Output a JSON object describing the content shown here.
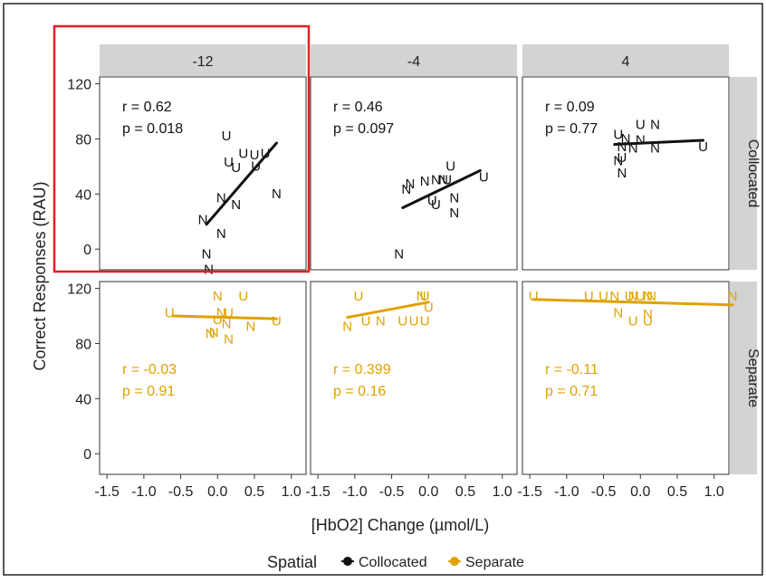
{
  "chart_data": {
    "type": "scatter",
    "facet_columns": [
      "-12",
      "-4",
      "4"
    ],
    "facet_rows": [
      "Collocated",
      "Separate"
    ],
    "xlabel": "[HbO2] Change (µmol/L)",
    "ylabel": "Correct Responses (RAU)",
    "x_ticks": [
      "-1.5",
      "-1.0",
      "-0.5",
      "0.0",
      "0.5",
      "1.0"
    ],
    "y_ticks": [
      "0",
      "40",
      "80",
      "120"
    ],
    "xlim": [
      -1.6,
      1.2
    ],
    "ylim": [
      -15,
      125
    ],
    "legend": {
      "title": "Spatial",
      "entries": [
        "Collocated",
        "Separate"
      ],
      "placement": "bottom"
    },
    "colors": {
      "Collocated": "#111111",
      "Separate": "#e0a100"
    },
    "marker_glyphs": [
      "U",
      "N"
    ],
    "highlight": {
      "facet": "-12 / Collocated",
      "color": "#e02020"
    },
    "panels": [
      {
        "col": "-12",
        "row": "Collocated",
        "group": "Collocated",
        "r": "r = 0.62",
        "p": "p = 0.018",
        "label_position": "top",
        "fit": [
          [
            -0.15,
            18
          ],
          [
            0.8,
            77
          ]
        ],
        "points": [
          {
            "m": "U",
            "x": 0.12,
            "y": 83
          },
          {
            "m": "U",
            "x": 0.35,
            "y": 70
          },
          {
            "m": "U",
            "x": 0.15,
            "y": 64
          },
          {
            "m": "U",
            "x": 0.25,
            "y": 60
          },
          {
            "m": "U",
            "x": 0.5,
            "y": 69
          },
          {
            "m": "U",
            "x": 0.65,
            "y": 70
          },
          {
            "m": "U",
            "x": 0.52,
            "y": 61
          },
          {
            "m": "N",
            "x": 0.05,
            "y": 38
          },
          {
            "m": "N",
            "x": 0.25,
            "y": 33
          },
          {
            "m": "N",
            "x": 0.8,
            "y": 41
          },
          {
            "m": "N",
            "x": -0.2,
            "y": 22
          },
          {
            "m": "N",
            "x": 0.05,
            "y": 12
          },
          {
            "m": "N",
            "x": -0.15,
            "y": -3
          },
          {
            "m": "N",
            "x": -0.12,
            "y": -14
          }
        ]
      },
      {
        "col": "-4",
        "row": "Collocated",
        "group": "Collocated",
        "r": "r = 0.46",
        "p": "p = 0.097",
        "label_position": "top",
        "fit": [
          [
            -0.35,
            30
          ],
          [
            0.7,
            57
          ]
        ],
        "points": [
          {
            "m": "N",
            "x": -0.25,
            "y": 48
          },
          {
            "m": "N",
            "x": -0.3,
            "y": 44
          },
          {
            "m": "N",
            "x": 0.1,
            "y": 51
          },
          {
            "m": "N",
            "x": 0.2,
            "y": 51
          },
          {
            "m": "U",
            "x": 0.3,
            "y": 61
          },
          {
            "m": "U",
            "x": 0.25,
            "y": 51
          },
          {
            "m": "U",
            "x": 0.75,
            "y": 53
          },
          {
            "m": "N",
            "x": -0.05,
            "y": 50
          },
          {
            "m": "U",
            "x": 0.05,
            "y": 36
          },
          {
            "m": "U",
            "x": 0.1,
            "y": 33
          },
          {
            "m": "N",
            "x": 0.35,
            "y": 38
          },
          {
            "m": "N",
            "x": 0.35,
            "y": 27
          },
          {
            "m": "N",
            "x": -0.4,
            "y": -3
          }
        ]
      },
      {
        "col": "4",
        "row": "Collocated",
        "group": "Collocated",
        "r": "r = 0.09",
        "p": "p = 0.77",
        "label_position": "top",
        "fit": [
          [
            -0.35,
            76
          ],
          [
            0.85,
            79
          ]
        ],
        "points": [
          {
            "m": "U",
            "x": -0.3,
            "y": 84
          },
          {
            "m": "U",
            "x": 0.0,
            "y": 91
          },
          {
            "m": "N",
            "x": 0.2,
            "y": 91
          },
          {
            "m": "N",
            "x": -0.2,
            "y": 81
          },
          {
            "m": "N",
            "x": 0.0,
            "y": 80
          },
          {
            "m": "N",
            "x": -0.25,
            "y": 75
          },
          {
            "m": "N",
            "x": -0.1,
            "y": 74
          },
          {
            "m": "N",
            "x": 0.2,
            "y": 74
          },
          {
            "m": "U",
            "x": 0.85,
            "y": 75
          },
          {
            "m": "U",
            "x": -0.25,
            "y": 67
          },
          {
            "m": "N",
            "x": -0.3,
            "y": 65
          },
          {
            "m": "N",
            "x": -0.25,
            "y": 56
          }
        ]
      },
      {
        "col": "-12",
        "row": "Separate",
        "group": "Separate",
        "r": "r = -0.03",
        "p": "p = 0.91",
        "label_position": "bottom",
        "fit": [
          [
            -0.6,
            100
          ],
          [
            0.8,
            98
          ]
        ],
        "points": [
          {
            "m": "U",
            "x": -0.65,
            "y": 103
          },
          {
            "m": "N",
            "x": 0.0,
            "y": 115
          },
          {
            "m": "U",
            "x": 0.35,
            "y": 115
          },
          {
            "m": "N",
            "x": 0.05,
            "y": 103
          },
          {
            "m": "U",
            "x": 0.15,
            "y": 103
          },
          {
            "m": "U",
            "x": 0.0,
            "y": 98
          },
          {
            "m": "N",
            "x": 0.12,
            "y": 95
          },
          {
            "m": "N",
            "x": 0.45,
            "y": 93
          },
          {
            "m": "N",
            "x": -0.1,
            "y": 88
          },
          {
            "m": "N",
            "x": -0.05,
            "y": 89
          },
          {
            "m": "N",
            "x": 0.15,
            "y": 84
          },
          {
            "m": "U",
            "x": 0.8,
            "y": 97
          }
        ]
      },
      {
        "col": "-4",
        "row": "Separate",
        "group": "Separate",
        "r": "r = 0.399",
        "p": "p = 0.16",
        "label_position": "bottom",
        "fit": [
          [
            -1.1,
            99
          ],
          [
            0.0,
            110
          ]
        ],
        "points": [
          {
            "m": "U",
            "x": -0.95,
            "y": 115
          },
          {
            "m": "N",
            "x": -0.1,
            "y": 115
          },
          {
            "m": "U",
            "x": -0.05,
            "y": 115
          },
          {
            "m": "U",
            "x": 0.0,
            "y": 107
          },
          {
            "m": "N",
            "x": -1.1,
            "y": 93
          },
          {
            "m": "U",
            "x": -0.85,
            "y": 97
          },
          {
            "m": "N",
            "x": -0.65,
            "y": 97
          },
          {
            "m": "U",
            "x": -0.35,
            "y": 97
          },
          {
            "m": "U",
            "x": -0.2,
            "y": 97
          },
          {
            "m": "U",
            "x": -0.05,
            "y": 97
          }
        ]
      },
      {
        "col": "4",
        "row": "Separate",
        "group": "Separate",
        "r": "r = -0.11",
        "p": "p = 0.71",
        "label_position": "bottom",
        "fit": [
          [
            -1.45,
            112
          ],
          [
            1.25,
            108
          ]
        ],
        "points": [
          {
            "m": "U",
            "x": -1.45,
            "y": 115
          },
          {
            "m": "U",
            "x": -0.7,
            "y": 115
          },
          {
            "m": "U",
            "x": -0.5,
            "y": 115
          },
          {
            "m": "N",
            "x": -0.35,
            "y": 115
          },
          {
            "m": "U",
            "x": -0.15,
            "y": 115
          },
          {
            "m": "U",
            "x": 0.0,
            "y": 115
          },
          {
            "m": "N",
            "x": -0.1,
            "y": 115
          },
          {
            "m": "N",
            "x": 0.1,
            "y": 115
          },
          {
            "m": "N",
            "x": 0.15,
            "y": 115
          },
          {
            "m": "N",
            "x": 1.25,
            "y": 115
          },
          {
            "m": "N",
            "x": -0.3,
            "y": 103
          },
          {
            "m": "U",
            "x": -0.1,
            "y": 97
          },
          {
            "m": "U",
            "x": 0.1,
            "y": 97
          },
          {
            "m": "N",
            "x": 0.1,
            "y": 102
          }
        ]
      }
    ]
  }
}
